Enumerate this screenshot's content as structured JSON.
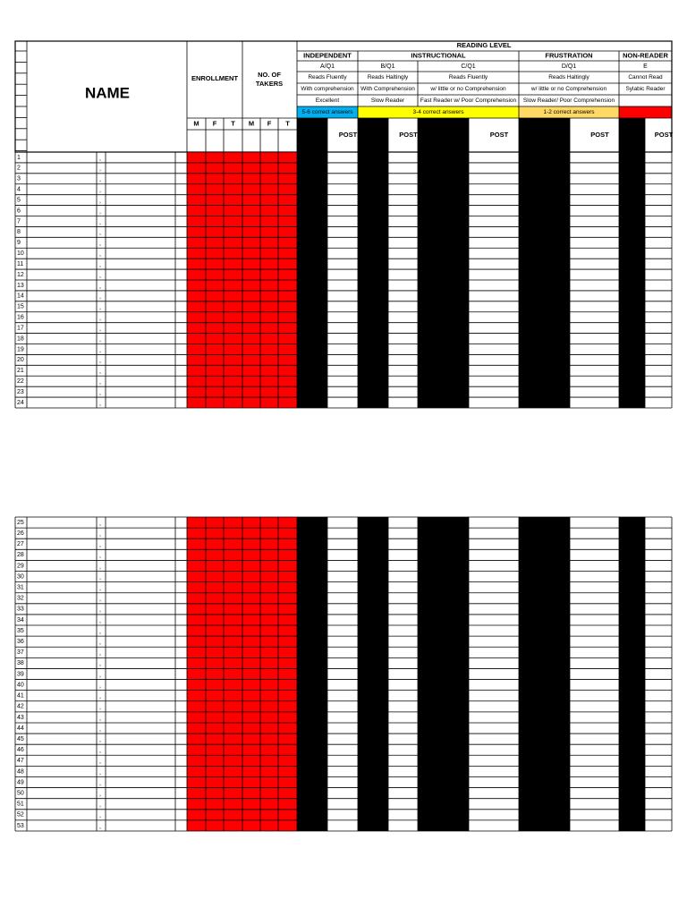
{
  "header": {
    "reading_level": "READING LEVEL",
    "name": "NAME",
    "enrollment": "ENROLLMENT",
    "takers": [
      "NO. OF",
      "TAKERS"
    ],
    "mft": [
      "M",
      "F",
      "T",
      "M",
      "F",
      "T"
    ],
    "levels": [
      {
        "title": "INDEPENDENT",
        "codes": [
          "A/Q1"
        ],
        "lines": [
          [
            "Reads Fluently"
          ],
          [
            "With comprehension"
          ],
          [
            "Excellent"
          ]
        ],
        "range": "5-6 correct answers"
      },
      {
        "title": "INSTRUCTIONAL",
        "codes": [
          "B/Q1",
          "C/Q1"
        ],
        "lines": [
          [
            "Reads Haltingly",
            "Reads Fluently"
          ],
          [
            "With Comprehension",
            "w/ little or no Comprehension"
          ],
          [
            "Slow Reader",
            "Fast Reader w/ Poor Comprehension"
          ]
        ],
        "range": "3-4 correct answers"
      },
      {
        "title": "FRUSTRATION",
        "codes": [
          "D/Q1"
        ],
        "lines": [
          [
            "Reads Haltingly"
          ],
          [
            "w/ little or no Comprehension"
          ],
          [
            "Slow Reader/ Poor Comprehension"
          ]
        ],
        "range": "1-2 correct answers"
      },
      {
        "title": "NON-READER",
        "codes": [
          "E"
        ],
        "lines": [
          [
            "Cannot Read"
          ],
          [
            "Sylabic Reader"
          ]
        ],
        "range": null
      }
    ],
    "post": [
      "POST",
      "POST",
      "POST",
      "POST",
      "POST"
    ]
  },
  "separator": ",",
  "blocks": [
    {
      "rows": [
        1,
        2,
        3,
        4,
        5,
        6,
        7,
        8,
        9,
        10,
        11,
        12,
        13,
        14,
        15,
        16,
        17,
        18,
        19,
        20,
        21,
        22,
        23,
        24
      ]
    },
    {
      "rows": [
        25,
        26,
        27,
        28,
        29,
        30,
        31,
        32,
        33,
        34,
        35,
        36,
        37,
        38,
        39,
        40,
        41,
        42,
        43,
        44,
        45,
        46,
        47,
        48,
        49,
        50,
        51,
        52,
        53
      ]
    }
  ]
}
